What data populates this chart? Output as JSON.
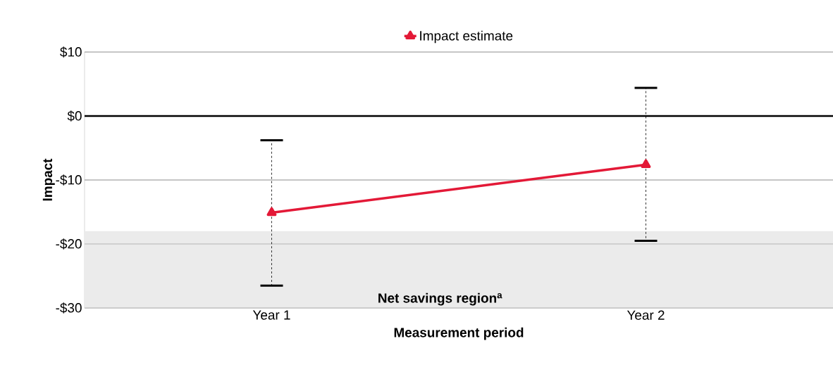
{
  "chart_data": {
    "type": "line",
    "xlabel": "Measurement period",
    "ylabel": "Impact",
    "categories": [
      "Year 1",
      "Year 2"
    ],
    "series": [
      {
        "name": "Impact estimate",
        "color": "#e31937",
        "values": [
          -15.1,
          -7.6
        ],
        "errors": [
          [
            -26.5,
            -3.8
          ],
          [
            -19.5,
            4.4
          ]
        ]
      }
    ],
    "ylim": [
      -30,
      10
    ],
    "yticks": [
      {
        "value": -30,
        "label": "-$30"
      },
      {
        "value": -20,
        "label": "-$20"
      },
      {
        "value": -10,
        "label": "-$10"
      },
      {
        "value": 0,
        "label": "$0"
      },
      {
        "value": 10,
        "label": "$10"
      }
    ],
    "ref_lines": [
      {
        "axis": "y",
        "value": 0,
        "color": "#000000"
      }
    ],
    "bands": [
      {
        "axis": "y",
        "from": -30,
        "to": -18,
        "label": "Net savings region$^{a}$",
        "color": "#ebebeb"
      }
    ],
    "grid": "y",
    "legend": "top",
    "marker": "triangle",
    "line_style": "solid"
  }
}
